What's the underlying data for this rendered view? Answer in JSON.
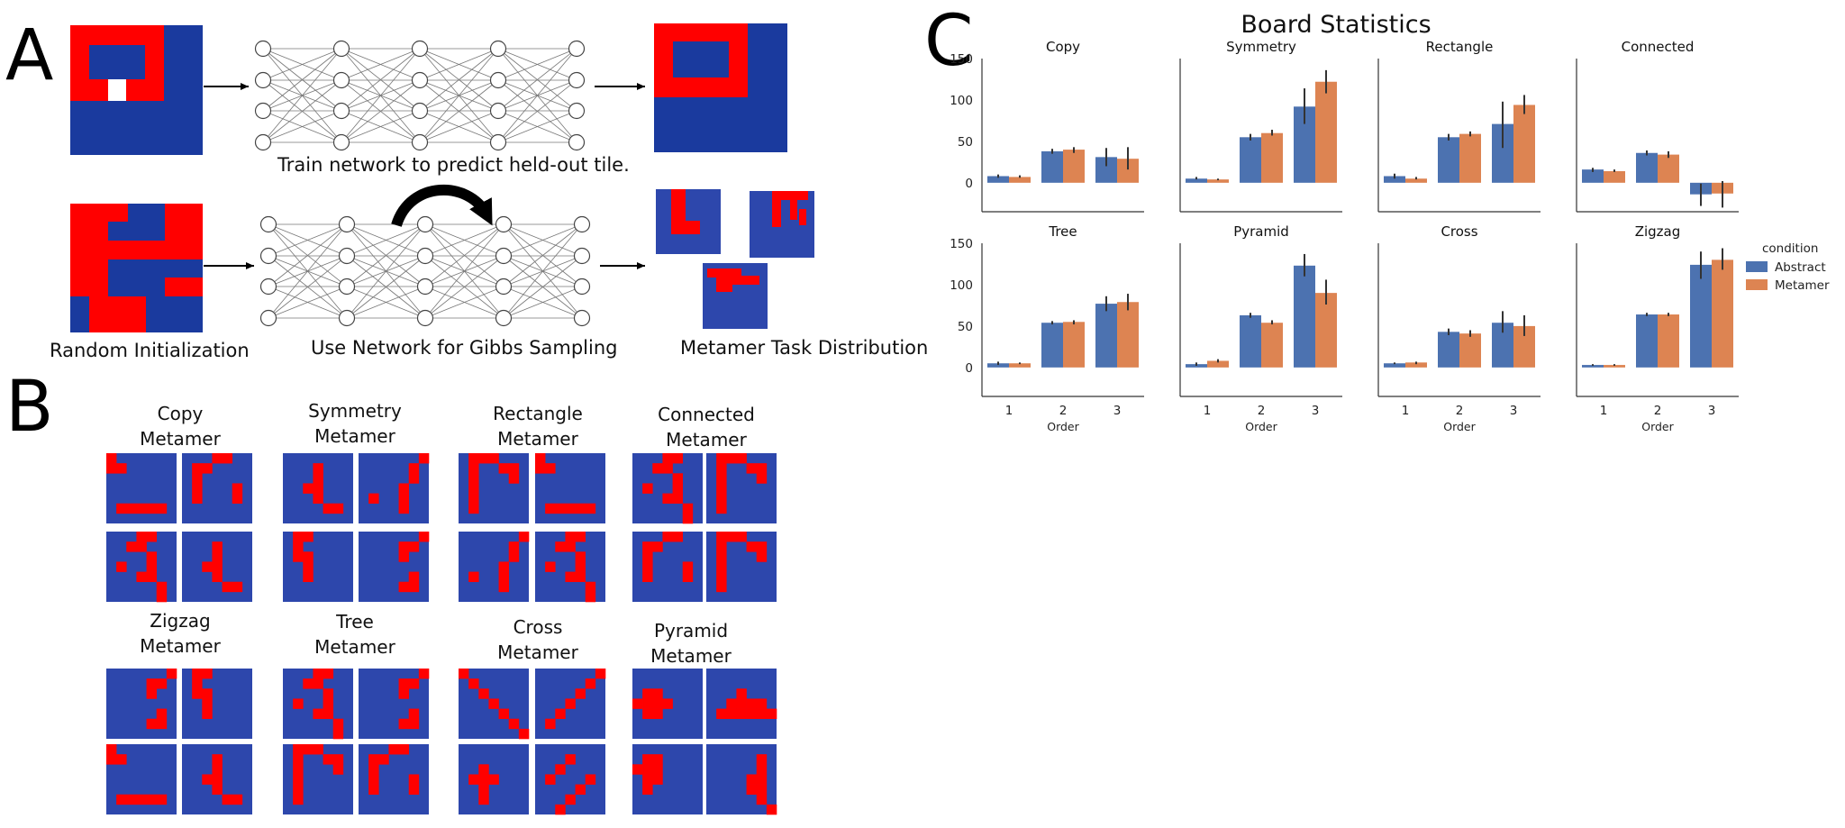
{
  "colors": {
    "tile_blue": "#2d47ac",
    "tile_blue_dark": "#1a3a9e",
    "tile_red": "#ff0000",
    "abstract": "#4c72b0",
    "metamer": "#dd8452",
    "errorbar": "#333333"
  },
  "panel_a": {
    "letter": "A",
    "caption_train": "Train network to predict held-out tile.",
    "caption_init": "Random Initialization",
    "caption_gibbs": "Use Network for Gibbs Sampling",
    "caption_dist": "Metamer Task Distribution"
  },
  "panel_b": {
    "letter": "B",
    "groups": [
      {
        "title_line1": "Copy",
        "title_line2": "Metamer"
      },
      {
        "title_line1": "Symmetry",
        "title_line2": "Metamer"
      },
      {
        "title_line1": "Rectangle",
        "title_line2": "Metamer"
      },
      {
        "title_line1": "Connected",
        "title_line2": "Metamer"
      },
      {
        "title_line1": "Zigzag",
        "title_line2": "Metamer"
      },
      {
        "title_line1": "Tree",
        "title_line2": "Metamer"
      },
      {
        "title_line1": "Cross",
        "title_line2": "Metamer"
      },
      {
        "title_line1": "Pyramid",
        "title_line2": "Metamer"
      }
    ]
  },
  "panel_c": {
    "letter": "C",
    "title": "Board Statistics",
    "legend_title": "condition",
    "legend_items": [
      "Abstract",
      "Metamer"
    ]
  },
  "chart_data": {
    "type": "bar",
    "title": "Board Statistics",
    "xlabel": "Order",
    "categories": [
      "1",
      "2",
      "3"
    ],
    "ylim": [
      -35,
      150
    ],
    "yticks": [
      0,
      50,
      100,
      150
    ],
    "legend": {
      "title": "condition",
      "placement": "right"
    },
    "subplots": [
      {
        "title": "Copy",
        "series": [
          {
            "name": "Abstract",
            "values": [
              8,
              38,
              31
            ],
            "err": [
              [
                6,
                10
              ],
              [
                35,
                41
              ],
              [
                20,
                42
              ]
            ]
          },
          {
            "name": "Metamer",
            "values": [
              7,
              40,
              29
            ],
            "err": [
              [
                6,
                9
              ],
              [
                36,
                43
              ],
              [
                16,
                43
              ]
            ]
          }
        ]
      },
      {
        "title": "Symmetry",
        "series": [
          {
            "name": "Abstract",
            "values": [
              5,
              55,
              92
            ],
            "err": [
              [
                4,
                7
              ],
              [
                51,
                59
              ],
              [
                71,
                114
              ]
            ]
          },
          {
            "name": "Metamer",
            "values": [
              4,
              60,
              122
            ],
            "err": [
              [
                3,
                5
              ],
              [
                57,
                64
              ],
              [
                108,
                136
              ]
            ]
          }
        ]
      },
      {
        "title": "Rectangle",
        "series": [
          {
            "name": "Abstract",
            "values": [
              8,
              55,
              71
            ],
            "err": [
              [
                5,
                11
              ],
              [
                51,
                59
              ],
              [
                42,
                98
              ]
            ]
          },
          {
            "name": "Metamer",
            "values": [
              5,
              59,
              94
            ],
            "err": [
              [
                4,
                7
              ],
              [
                56,
                62
              ],
              [
                83,
                106
              ]
            ]
          }
        ]
      },
      {
        "title": "Connected",
        "series": [
          {
            "name": "Abstract",
            "values": [
              16,
              36,
              -14
            ],
            "err": [
              [
                13,
                18
              ],
              [
                33,
                39
              ],
              [
                -28,
                -1
              ]
            ]
          },
          {
            "name": "Metamer",
            "values": [
              14,
              34,
              -13
            ],
            "err": [
              [
                13,
                16
              ],
              [
                30,
                38
              ],
              [
                -30,
                2
              ]
            ]
          }
        ]
      },
      {
        "title": "Tree",
        "series": [
          {
            "name": "Abstract",
            "values": [
              5,
              54,
              77
            ],
            "err": [
              [
                3,
                7
              ],
              [
                52,
                56
              ],
              [
                68,
                86
              ]
            ]
          },
          {
            "name": "Metamer",
            "values": [
              5,
              55,
              79
            ],
            "err": [
              [
                4,
                6
              ],
              [
                52,
                57
              ],
              [
                69,
                89
              ]
            ]
          }
        ]
      },
      {
        "title": "Pyramid",
        "series": [
          {
            "name": "Abstract",
            "values": [
              4,
              63,
              123
            ],
            "err": [
              [
                2,
                6
              ],
              [
                60,
                66
              ],
              [
                110,
                137
              ]
            ]
          },
          {
            "name": "Metamer",
            "values": [
              8,
              54,
              90
            ],
            "err": [
              [
                6,
                10
              ],
              [
                52,
                57
              ],
              [
                76,
                106
              ]
            ]
          }
        ]
      },
      {
        "title": "Cross",
        "series": [
          {
            "name": "Abstract",
            "values": [
              5,
              43,
              54
            ],
            "err": [
              [
                4,
                6
              ],
              [
                39,
                47
              ],
              [
                42,
                68
              ]
            ]
          },
          {
            "name": "Metamer",
            "values": [
              6,
              41,
              50
            ],
            "err": [
              [
                4,
                7
              ],
              [
                37,
                45
              ],
              [
                38,
                63
              ]
            ]
          }
        ]
      },
      {
        "title": "Zigzag",
        "series": [
          {
            "name": "Abstract",
            "values": [
              3,
              64,
              124
            ],
            "err": [
              [
                2,
                4
              ],
              [
                62,
                66
              ],
              [
                107,
                140
              ]
            ]
          },
          {
            "name": "Metamer",
            "values": [
              3,
              64,
              130
            ],
            "err": [
              [
                2,
                4
              ],
              [
                62,
                66
              ],
              [
                118,
                144
              ]
            ]
          }
        ]
      }
    ]
  }
}
